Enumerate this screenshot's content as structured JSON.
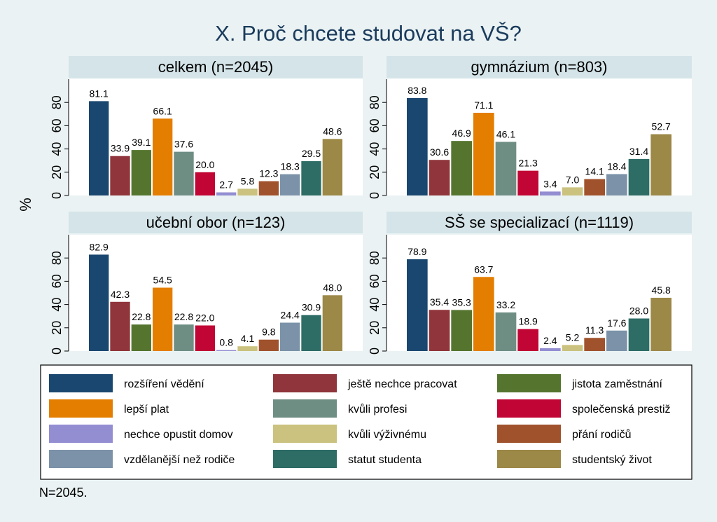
{
  "chart_data": {
    "type": "bar",
    "title": "X. Proč chcete studovat na VŠ?",
    "ylabel": "%",
    "ylim": [
      0,
      100
    ],
    "yticks": [
      0,
      20,
      40,
      60,
      80
    ],
    "categories": [
      "rozšíření vědění",
      "ještě nechce pracovat",
      "jistota zaměstnání",
      "lepší plat",
      "kvůli profesi",
      "společenská prestiž",
      "nechce opustit domov",
      "kvůli výživnému",
      "přání rodičů",
      "vzdělanější než rodiče",
      "statut studenta",
      "studentský život"
    ],
    "colors": [
      "#1a476f",
      "#90353b",
      "#55752f",
      "#e37e00",
      "#6e8e84",
      "#c10534",
      "#938dd2",
      "#cac27e",
      "#a0522d",
      "#7b92a8",
      "#2d6d66",
      "#9c8847"
    ],
    "panels": [
      {
        "title": "celkem (n=2045)",
        "values": [
          81.1,
          33.9,
          39.1,
          66.1,
          37.6,
          20.0,
          2.7,
          5.8,
          12.3,
          18.3,
          29.5,
          48.6
        ],
        "labels": [
          "81.1",
          "33.9",
          "39.1",
          "66.1",
          "37.6",
          "20.0",
          "2.7",
          "5.8",
          "12.3",
          "18.3",
          "29.5",
          "48.6"
        ]
      },
      {
        "title": "gymnázium (n=803)",
        "values": [
          83.8,
          30.6,
          46.9,
          71.1,
          46.1,
          21.3,
          3.4,
          7.0,
          14.1,
          18.4,
          31.4,
          52.7
        ],
        "labels": [
          "83.8",
          "30.6",
          "46.9",
          "71.1",
          "46.1",
          "21.3",
          "3.4",
          "7.0",
          "14.1",
          "18.4",
          "31.4",
          "52.7"
        ]
      },
      {
        "title": "učební obor (n=123)",
        "values": [
          82.9,
          42.3,
          22.8,
          54.5,
          22.8,
          22.0,
          0.8,
          4.1,
          9.8,
          24.4,
          30.9,
          48.0
        ],
        "labels": [
          "82.9",
          "42.3",
          "22.8",
          "54.5",
          "22.8",
          "22.0",
          "0.8",
          "4.1",
          "9.8",
          "24.4",
          "30.9",
          "48.0"
        ]
      },
      {
        "title": "SŠ se specializací (n=1119)",
        "values": [
          78.9,
          35.4,
          35.3,
          63.7,
          33.2,
          18.9,
          2.4,
          5.2,
          11.3,
          17.6,
          28.0,
          45.8
        ],
        "labels": [
          "78.9",
          "35.4",
          "35.3",
          "63.7",
          "33.2",
          "18.9",
          "2.4",
          "5.2",
          "11.3",
          "17.6",
          "28.0",
          "45.8"
        ]
      }
    ],
    "legend_position": "bottom",
    "note": "N=2045."
  }
}
